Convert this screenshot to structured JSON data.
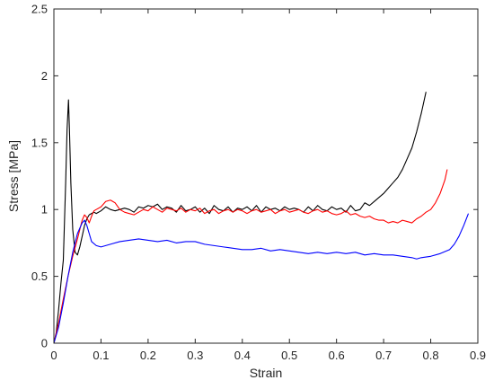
{
  "chart_data": {
    "type": "line",
    "title": "",
    "xlabel": "Strain",
    "ylabel": "Stress [MPa]",
    "xlim": [
      0,
      0.9
    ],
    "ylim": [
      0,
      2.5
    ],
    "xticks": [
      0,
      0.1,
      0.2,
      0.3,
      0.4,
      0.5,
      0.6,
      0.7,
      0.8,
      0.9
    ],
    "xtick_labels": [
      "0",
      "0.1",
      "0.2",
      "0.3",
      "0.4",
      "0.5",
      "0.6",
      "0.7",
      "0.8",
      "0.9"
    ],
    "yticks": [
      0,
      0.5,
      1,
      1.5,
      2,
      2.5
    ],
    "ytick_labels": [
      "0",
      "0.5",
      "1",
      "1.5",
      "2",
      "2.5"
    ],
    "grid": false,
    "legend": "none",
    "box": true,
    "series": [
      {
        "color": "#000000",
        "x": [
          0.0,
          0.005,
          0.01,
          0.015,
          0.02,
          0.025,
          0.028,
          0.031,
          0.033,
          0.036,
          0.04,
          0.045,
          0.05,
          0.055,
          0.06,
          0.065,
          0.07,
          0.075,
          0.08,
          0.085,
          0.09,
          0.1,
          0.11,
          0.12,
          0.13,
          0.14,
          0.15,
          0.16,
          0.17,
          0.18,
          0.19,
          0.2,
          0.21,
          0.22,
          0.23,
          0.24,
          0.25,
          0.26,
          0.27,
          0.28,
          0.29,
          0.3,
          0.31,
          0.32,
          0.33,
          0.34,
          0.35,
          0.36,
          0.37,
          0.38,
          0.39,
          0.4,
          0.41,
          0.42,
          0.43,
          0.44,
          0.45,
          0.46,
          0.47,
          0.48,
          0.49,
          0.5,
          0.51,
          0.52,
          0.53,
          0.54,
          0.55,
          0.56,
          0.57,
          0.58,
          0.59,
          0.6,
          0.61,
          0.62,
          0.63,
          0.64,
          0.65,
          0.66,
          0.67,
          0.68,
          0.69,
          0.7,
          0.71,
          0.72,
          0.73,
          0.74,
          0.75,
          0.76,
          0.77,
          0.78,
          0.79
        ],
        "y": [
          0.0,
          0.08,
          0.25,
          0.45,
          0.62,
          1.2,
          1.6,
          1.82,
          1.6,
          1.2,
          0.85,
          0.68,
          0.66,
          0.72,
          0.8,
          0.88,
          0.93,
          0.96,
          0.97,
          0.98,
          0.97,
          0.99,
          1.02,
          1.0,
          0.99,
          1.0,
          1.01,
          1.0,
          0.98,
          1.02,
          1.01,
          1.03,
          1.02,
          1.04,
          1.0,
          1.02,
          1.01,
          0.98,
          1.03,
          0.99,
          1.0,
          1.02,
          0.98,
          1.01,
          0.97,
          1.03,
          1.0,
          0.99,
          1.02,
          0.98,
          1.01,
          1.0,
          1.02,
          0.99,
          1.03,
          0.98,
          1.02,
          1.0,
          1.01,
          0.99,
          1.02,
          1.0,
          1.01,
          1.0,
          0.98,
          1.02,
          0.99,
          1.03,
          1.0,
          0.99,
          1.02,
          1.0,
          1.01,
          0.98,
          1.03,
          0.99,
          1.0,
          1.05,
          1.03,
          1.06,
          1.09,
          1.12,
          1.16,
          1.2,
          1.24,
          1.3,
          1.38,
          1.46,
          1.58,
          1.72,
          1.88
        ]
      },
      {
        "color": "#ff0000",
        "x": [
          0.0,
          0.01,
          0.02,
          0.03,
          0.04,
          0.05,
          0.06,
          0.065,
          0.07,
          0.075,
          0.08,
          0.085,
          0.09,
          0.1,
          0.11,
          0.12,
          0.13,
          0.14,
          0.15,
          0.16,
          0.17,
          0.18,
          0.19,
          0.2,
          0.21,
          0.22,
          0.23,
          0.24,
          0.25,
          0.26,
          0.27,
          0.28,
          0.29,
          0.3,
          0.31,
          0.32,
          0.33,
          0.34,
          0.35,
          0.36,
          0.37,
          0.38,
          0.39,
          0.4,
          0.41,
          0.42,
          0.43,
          0.44,
          0.45,
          0.46,
          0.47,
          0.48,
          0.49,
          0.5,
          0.51,
          0.52,
          0.53,
          0.54,
          0.55,
          0.56,
          0.57,
          0.58,
          0.59,
          0.6,
          0.61,
          0.62,
          0.63,
          0.64,
          0.65,
          0.66,
          0.67,
          0.68,
          0.69,
          0.7,
          0.71,
          0.72,
          0.73,
          0.74,
          0.75,
          0.76,
          0.77,
          0.78,
          0.79,
          0.8,
          0.81,
          0.82,
          0.83,
          0.835
        ],
        "y": [
          0.0,
          0.15,
          0.33,
          0.5,
          0.65,
          0.78,
          0.92,
          0.96,
          0.94,
          0.9,
          0.95,
          0.99,
          1.0,
          1.02,
          1.06,
          1.07,
          1.05,
          1.0,
          0.98,
          0.97,
          0.96,
          0.98,
          1.0,
          0.99,
          1.02,
          1.0,
          0.98,
          1.01,
          1.0,
          0.99,
          1.01,
          0.98,
          1.0,
          0.99,
          1.01,
          0.97,
          0.99,
          1.0,
          0.97,
          0.99,
          1.0,
          0.98,
          1.0,
          0.99,
          0.97,
          0.99,
          1.0,
          0.98,
          0.99,
          1.0,
          0.97,
          0.99,
          1.0,
          0.98,
          0.99,
          1.0,
          0.98,
          0.97,
          0.99,
          1.0,
          0.98,
          0.99,
          0.97,
          0.96,
          0.97,
          0.99,
          0.96,
          0.97,
          0.95,
          0.94,
          0.95,
          0.93,
          0.92,
          0.92,
          0.9,
          0.91,
          0.9,
          0.92,
          0.91,
          0.9,
          0.93,
          0.95,
          0.98,
          1.0,
          1.05,
          1.12,
          1.22,
          1.3
        ]
      },
      {
        "color": "#0000ff",
        "x": [
          0.0,
          0.01,
          0.02,
          0.03,
          0.04,
          0.05,
          0.06,
          0.065,
          0.07,
          0.075,
          0.08,
          0.09,
          0.1,
          0.12,
          0.14,
          0.16,
          0.18,
          0.2,
          0.22,
          0.24,
          0.26,
          0.28,
          0.3,
          0.32,
          0.34,
          0.36,
          0.38,
          0.4,
          0.42,
          0.44,
          0.46,
          0.48,
          0.5,
          0.52,
          0.54,
          0.56,
          0.58,
          0.6,
          0.62,
          0.64,
          0.66,
          0.68,
          0.7,
          0.72,
          0.74,
          0.76,
          0.77,
          0.78,
          0.8,
          0.82,
          0.84,
          0.85,
          0.86,
          0.87,
          0.88
        ],
        "y": [
          0.0,
          0.12,
          0.3,
          0.5,
          0.68,
          0.82,
          0.9,
          0.92,
          0.88,
          0.82,
          0.76,
          0.73,
          0.72,
          0.74,
          0.76,
          0.77,
          0.78,
          0.77,
          0.76,
          0.77,
          0.75,
          0.76,
          0.76,
          0.74,
          0.73,
          0.72,
          0.71,
          0.7,
          0.7,
          0.71,
          0.69,
          0.7,
          0.69,
          0.68,
          0.67,
          0.68,
          0.67,
          0.68,
          0.67,
          0.68,
          0.66,
          0.67,
          0.66,
          0.66,
          0.65,
          0.64,
          0.63,
          0.64,
          0.65,
          0.67,
          0.7,
          0.74,
          0.8,
          0.88,
          0.97
        ]
      }
    ]
  }
}
